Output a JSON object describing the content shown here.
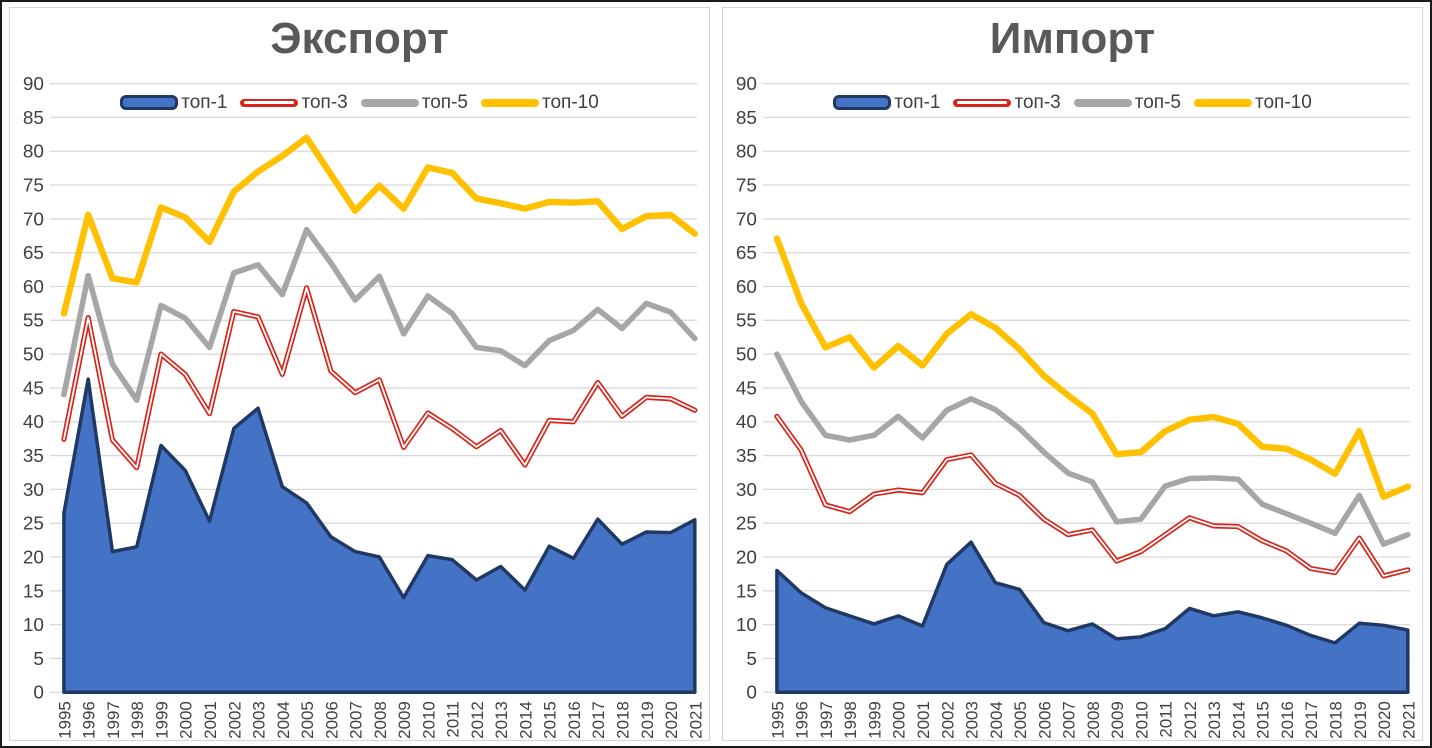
{
  "page": {
    "background": "#ffffff",
    "outer_border": "#1a1a1a",
    "panel_border": "#d6d6d6",
    "gridline_color": "#d9d9d9",
    "tick_label_color": "#404040",
    "title_color": "#595959"
  },
  "legend": {
    "position": "top",
    "items": [
      {
        "label": "топ-1",
        "swatch": "area",
        "fill": "#4472C4",
        "edge": "#1F3864"
      },
      {
        "label": "топ-3",
        "swatch": "dline",
        "color": "#D8251B",
        "inner": "#ffffff"
      },
      {
        "label": "топ-5",
        "swatch": "line",
        "color": "#A6A6A6"
      },
      {
        "label": "топ-10",
        "swatch": "line",
        "color": "#FFC000"
      }
    ]
  },
  "chart_data": [
    {
      "type": "area",
      "title": "Экспорт",
      "xlabel": "",
      "ylabel": "",
      "ylim": [
        0,
        90
      ],
      "ytick_step": 5,
      "grid": true,
      "legend_position": "top",
      "categories": [
        "1995",
        "1996",
        "1997",
        "1998",
        "1999",
        "2000",
        "2001",
        "2002",
        "2003",
        "2004",
        "2005",
        "2006",
        "2007",
        "2008",
        "2009",
        "2010",
        "2011",
        "2012",
        "2013",
        "2014",
        "2015",
        "2016",
        "2017",
        "2018",
        "2019",
        "2020",
        "2021"
      ],
      "series": [
        {
          "name": "топ-1",
          "type": "area",
          "color": "#4472C4",
          "edge": "#1F3864",
          "edge_width": 3.5,
          "values": [
            26.5,
            46.3,
            20.8,
            21.5,
            36.5,
            32.8,
            25.3,
            39.0,
            42.0,
            30.4,
            28.0,
            23.0,
            20.8,
            20.0,
            14.0,
            20.2,
            19.6,
            16.6,
            18.6,
            15.1,
            21.6,
            19.8,
            25.6,
            21.9,
            23.7,
            23.6,
            25.5
          ]
        },
        {
          "name": "топ-3",
          "type": "line",
          "style": "double",
          "color": "#D8251B",
          "inner": "#ffffff",
          "width": 5.2,
          "values": [
            37.4,
            55.4,
            37.3,
            33.2,
            50.0,
            47.0,
            41.2,
            56.3,
            55.5,
            47.0,
            59.8,
            47.5,
            44.3,
            46.2,
            36.2,
            41.3,
            39.0,
            36.3,
            38.7,
            33.6,
            40.2,
            40.0,
            45.8,
            40.8,
            43.6,
            43.4,
            41.7
          ]
        },
        {
          "name": "топ-5",
          "type": "line",
          "style": "solid",
          "color": "#A6A6A6",
          "width": 5.6,
          "values": [
            44.0,
            61.6,
            48.5,
            43.2,
            57.2,
            55.3,
            51.0,
            62.0,
            63.2,
            58.8,
            68.4,
            63.5,
            58.0,
            61.5,
            53.0,
            58.6,
            56.0,
            51.0,
            50.5,
            48.3,
            52.0,
            53.5,
            56.6,
            53.8,
            57.5,
            56.2,
            52.3
          ]
        },
        {
          "name": "топ-10",
          "type": "line",
          "style": "solid",
          "color": "#FFC000",
          "width": 6.4,
          "values": [
            56.0,
            70.6,
            61.2,
            60.6,
            71.7,
            70.2,
            66.6,
            74.0,
            77.0,
            79.3,
            82.0,
            76.6,
            71.2,
            74.9,
            71.5,
            77.6,
            76.8,
            73.0,
            72.3,
            71.5,
            72.5,
            72.4,
            72.6,
            68.5,
            70.4,
            70.6,
            67.8
          ]
        }
      ]
    },
    {
      "type": "area",
      "title": "Импорт",
      "xlabel": "",
      "ylabel": "",
      "ylim": [
        0,
        90
      ],
      "ytick_step": 5,
      "grid": true,
      "legend_position": "top",
      "categories": [
        "1995",
        "1996",
        "1997",
        "1998",
        "1999",
        "2000",
        "2001",
        "2002",
        "2003",
        "2004",
        "2005",
        "2006",
        "2007",
        "2008",
        "2009",
        "2010",
        "2011",
        "2012",
        "2013",
        "2014",
        "2015",
        "2016",
        "2017",
        "2018",
        "2019",
        "2020",
        "2021"
      ],
      "series": [
        {
          "name": "топ-1",
          "type": "area",
          "color": "#4472C4",
          "edge": "#1F3864",
          "edge_width": 3.5,
          "values": [
            18.0,
            14.7,
            12.5,
            11.3,
            10.1,
            11.3,
            9.8,
            18.9,
            22.2,
            16.2,
            15.2,
            10.3,
            9.1,
            10.1,
            7.9,
            8.2,
            9.4,
            12.4,
            11.3,
            11.9,
            11.0,
            9.9,
            8.4,
            7.3,
            10.2,
            9.9,
            9.2
          ]
        },
        {
          "name": "топ-3",
          "type": "line",
          "style": "double",
          "color": "#D8251B",
          "inner": "#ffffff",
          "width": 5.2,
          "values": [
            40.8,
            35.8,
            27.7,
            26.7,
            29.3,
            29.9,
            29.5,
            34.4,
            35.1,
            30.9,
            29.1,
            25.6,
            23.3,
            24.0,
            19.4,
            20.8,
            23.3,
            25.8,
            24.6,
            24.5,
            22.4,
            20.9,
            18.3,
            17.7,
            22.8,
            17.2,
            18.1
          ]
        },
        {
          "name": "топ-5",
          "type": "line",
          "style": "solid",
          "color": "#A6A6A6",
          "width": 5.6,
          "values": [
            50.0,
            43.0,
            38.0,
            37.3,
            38.0,
            40.8,
            37.6,
            41.7,
            43.4,
            41.8,
            39.0,
            35.5,
            32.4,
            31.1,
            25.2,
            25.6,
            30.5,
            31.6,
            31.7,
            31.5,
            27.8,
            26.4,
            25.0,
            23.5,
            29.1,
            21.9,
            23.3
          ]
        },
        {
          "name": "топ-10",
          "type": "line",
          "style": "solid",
          "color": "#FFC000",
          "width": 6.4,
          "values": [
            67.1,
            57.5,
            51.0,
            52.5,
            48.0,
            51.2,
            48.3,
            53.0,
            55.9,
            53.9,
            50.7,
            46.8,
            43.9,
            41.2,
            35.2,
            35.5,
            38.6,
            40.3,
            40.7,
            39.7,
            36.3,
            36.0,
            34.4,
            32.3,
            38.6,
            28.9,
            30.4
          ]
        }
      ]
    }
  ]
}
